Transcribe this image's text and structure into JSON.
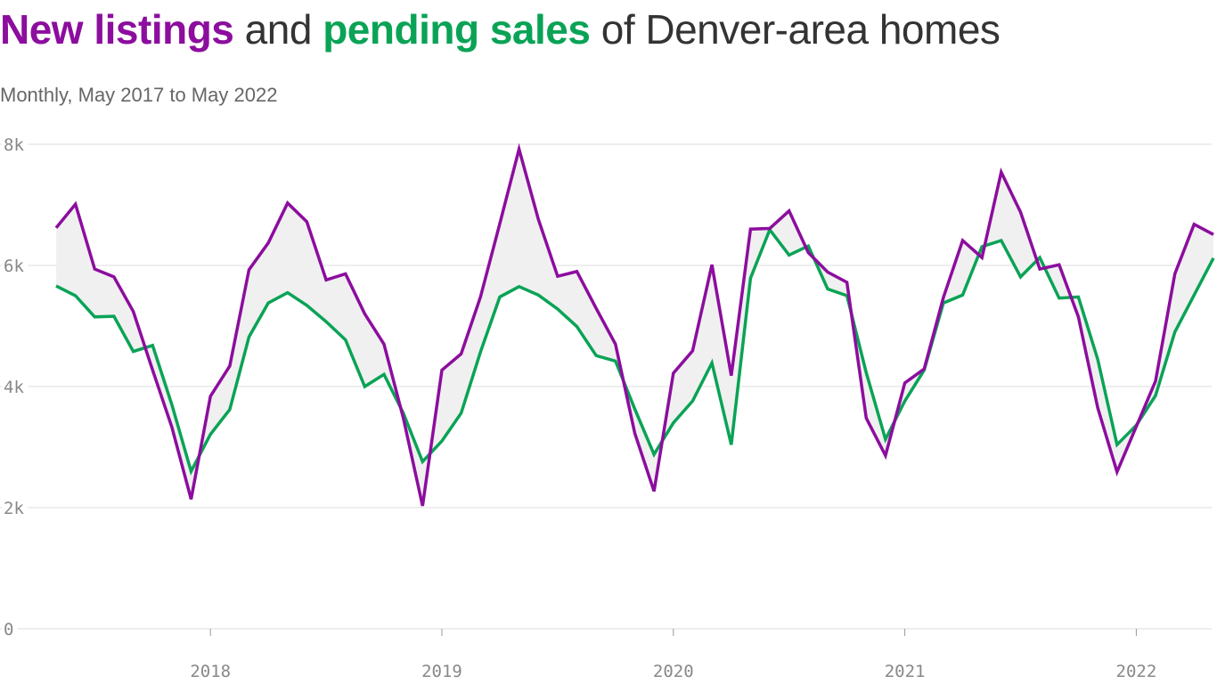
{
  "header": {
    "title_part1": "New listings",
    "title_part2": " and ",
    "title_part3": "pending sales",
    "title_part4": " of Denver-area homes",
    "subtitle": "Monthly, May 2017 to May 2022"
  },
  "colors": {
    "new_listings": "#8c0d9e",
    "pending_sales": "#0aa356",
    "gap_fill": "#f0f0f0",
    "grid": "#dddddd",
    "text": "#333333"
  },
  "chart_data": {
    "type": "line",
    "x_start": "2017-05",
    "x_end": "2022-05",
    "interval": "monthly",
    "ylim": [
      0,
      8000
    ],
    "y_ticks": [
      0,
      2000,
      4000,
      6000,
      8000
    ],
    "y_tick_labels": [
      "0",
      "2k",
      "4k",
      "6k",
      "8k"
    ],
    "x_ticks": [
      "2018",
      "2019",
      "2020",
      "2021",
      "2022"
    ],
    "grid": "horizontal",
    "area_between_series": true,
    "series": [
      {
        "name": "New listings",
        "values": [
          6620,
          7010,
          5940,
          5810,
          5240,
          4270,
          3330,
          2140,
          3840,
          4340,
          5930,
          6370,
          7030,
          6720,
          5760,
          5860,
          5200,
          4700,
          3480,
          2030,
          4270,
          4540,
          5480,
          6690,
          7920,
          6760,
          5820,
          5900,
          5290,
          4700,
          3230,
          2270,
          4220,
          4590,
          6010,
          4180,
          6600,
          6610,
          6900,
          6210,
          5890,
          5720,
          3480,
          2860,
          4060,
          4290,
          5470,
          6410,
          6130,
          7540,
          6880,
          5940,
          6010,
          5150,
          3650,
          2590,
          3340,
          4090,
          5860,
          6680,
          6510
        ]
      },
      {
        "name": "Pending sales",
        "values": [
          5660,
          5500,
          5150,
          5160,
          4580,
          4680,
          3700,
          2600,
          3210,
          3620,
          4820,
          5380,
          5550,
          5340,
          5070,
          4770,
          4000,
          4200,
          3560,
          2760,
          3100,
          3560,
          4570,
          5480,
          5650,
          5510,
          5280,
          4990,
          4510,
          4420,
          3630,
          2880,
          3400,
          3760,
          4390,
          3040,
          5790,
          6590,
          6170,
          6320,
          5610,
          5500,
          4230,
          3130,
          3760,
          4270,
          5380,
          5510,
          6310,
          6410,
          5810,
          6130,
          5460,
          5480,
          4450,
          3040,
          3360,
          3850,
          4900,
          5510,
          6120
        ]
      }
    ]
  }
}
